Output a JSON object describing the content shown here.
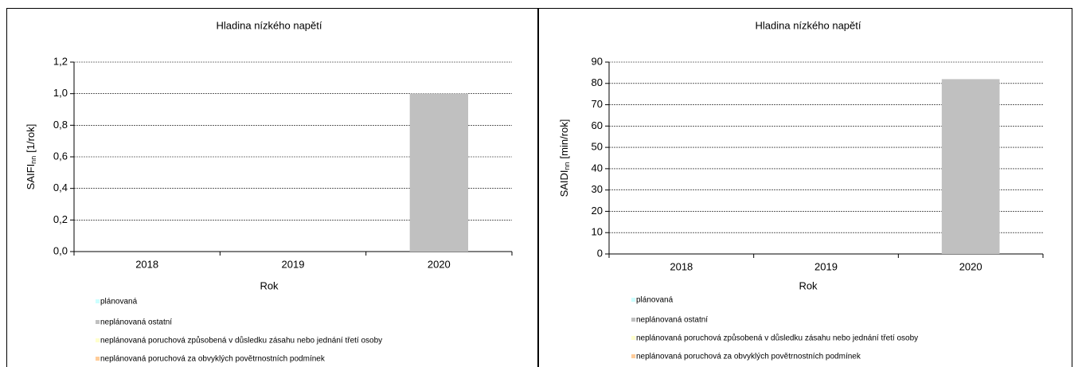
{
  "chart_data": [
    {
      "type": "bar",
      "stacked": true,
      "title": "Hladina nízkého napětí",
      "ylabel": {
        "main": "SAIFI",
        "sub": "nn",
        "unit": "[1/rok]"
      },
      "xlabel": "Rok",
      "categories": [
        "2018",
        "2019",
        "2020"
      ],
      "series": [
        {
          "name": "plánovaná",
          "color": "#ccffff",
          "values": [
            0,
            0,
            0
          ]
        },
        {
          "name": "neplánovaná ostatní",
          "color": "#c0c0c0",
          "values": [
            0,
            0,
            1.0
          ]
        },
        {
          "name": "neplánovaná poruchová způsobená v důsledku zásahu nebo jednání třetí osoby",
          "color": "#ffffcc",
          "values": [
            0,
            0,
            0
          ]
        },
        {
          "name": "neplánovaná poruchová za obvyklých povětrnostních podmínek",
          "color": "#ffcc99",
          "values": [
            0,
            0,
            0
          ]
        }
      ],
      "ylim": [
        0,
        1.2
      ],
      "yticks": [
        {
          "value": 0,
          "label": "0,0"
        },
        {
          "value": 0.2,
          "label": "0,2"
        },
        {
          "value": 0.4,
          "label": "0,4"
        },
        {
          "value": 0.6,
          "label": "0,6"
        },
        {
          "value": 0.8,
          "label": "0,8"
        },
        {
          "value": 1.0,
          "label": "1,0"
        },
        {
          "value": 1.2,
          "label": "1,2"
        }
      ],
      "grid": true
    },
    {
      "type": "bar",
      "stacked": true,
      "title": "Hladina nízkého napětí",
      "ylabel": {
        "main": "SAIDI",
        "sub": "nn",
        "unit": "[min/rok]"
      },
      "xlabel": "Rok",
      "categories": [
        "2018",
        "2019",
        "2020"
      ],
      "series": [
        {
          "name": "plánovaná",
          "color": "#ccffff",
          "values": [
            0,
            0,
            0
          ]
        },
        {
          "name": "neplánovaná ostatní",
          "color": "#c0c0c0",
          "values": [
            0,
            0,
            82
          ]
        },
        {
          "name": "neplánovaná poruchová způsobená v důsledku zásahu nebo jednání třetí osoby",
          "color": "#ffffcc",
          "values": [
            0,
            0,
            0
          ]
        },
        {
          "name": "neplánovaná poruchová za obvyklých povětrnostních podmínek",
          "color": "#ffcc99",
          "values": [
            0,
            0,
            0
          ]
        }
      ],
      "ylim": [
        0,
        90
      ],
      "yticks": [
        0,
        10,
        20,
        30,
        40,
        50,
        60,
        70,
        80,
        90
      ],
      "grid": true
    }
  ]
}
